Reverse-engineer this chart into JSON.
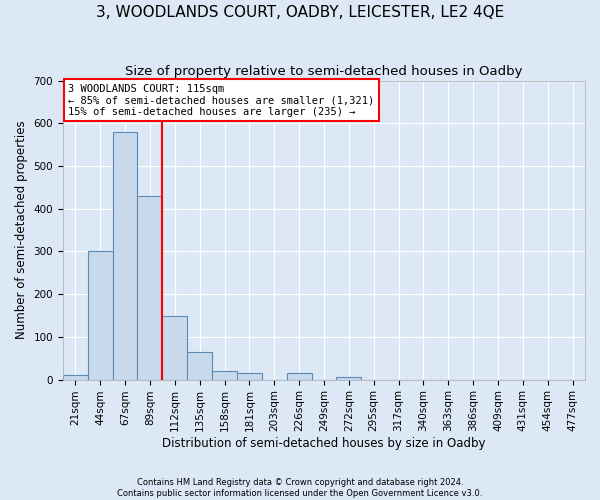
{
  "title": "3, WOODLANDS COURT, OADBY, LEICESTER, LE2 4QE",
  "subtitle": "Size of property relative to semi-detached houses in Oadby",
  "xlabel": "Distribution of semi-detached houses by size in Oadby",
  "ylabel": "Number of semi-detached properties",
  "footer_line1": "Contains HM Land Registry data © Crown copyright and database right 2024.",
  "footer_line2": "Contains public sector information licensed under the Open Government Licence v3.0.",
  "bar_categories": [
    "21sqm",
    "44sqm",
    "67sqm",
    "89sqm",
    "112sqm",
    "135sqm",
    "158sqm",
    "181sqm",
    "203sqm",
    "226sqm",
    "249sqm",
    "272sqm",
    "295sqm",
    "317sqm",
    "340sqm",
    "363sqm",
    "386sqm",
    "409sqm",
    "431sqm",
    "454sqm",
    "477sqm"
  ],
  "bar_values": [
    10,
    300,
    580,
    430,
    150,
    65,
    20,
    15,
    0,
    15,
    0,
    5,
    0,
    0,
    0,
    0,
    0,
    0,
    0,
    0,
    0
  ],
  "bar_color": "#c8d9eb",
  "bar_edge_color": "#5a8ab5",
  "property_line_x": 3.5,
  "annotation_line1": "3 WOODLANDS COURT: 115sqm",
  "annotation_line2": "← 85% of semi-detached houses are smaller (1,321)",
  "annotation_line3": "15% of semi-detached houses are larger (235) →",
  "annotation_box_color": "white",
  "annotation_box_edge_color": "red",
  "vline_color": "red",
  "ylim": [
    0,
    700
  ],
  "yticks": [
    0,
    100,
    200,
    300,
    400,
    500,
    600,
    700
  ],
  "title_fontsize": 11,
  "subtitle_fontsize": 9.5,
  "label_fontsize": 8.5,
  "tick_fontsize": 7.5,
  "annotation_fontsize": 7.5,
  "background_color": "#dce8f5",
  "plot_bg_color": "#dce8f5"
}
